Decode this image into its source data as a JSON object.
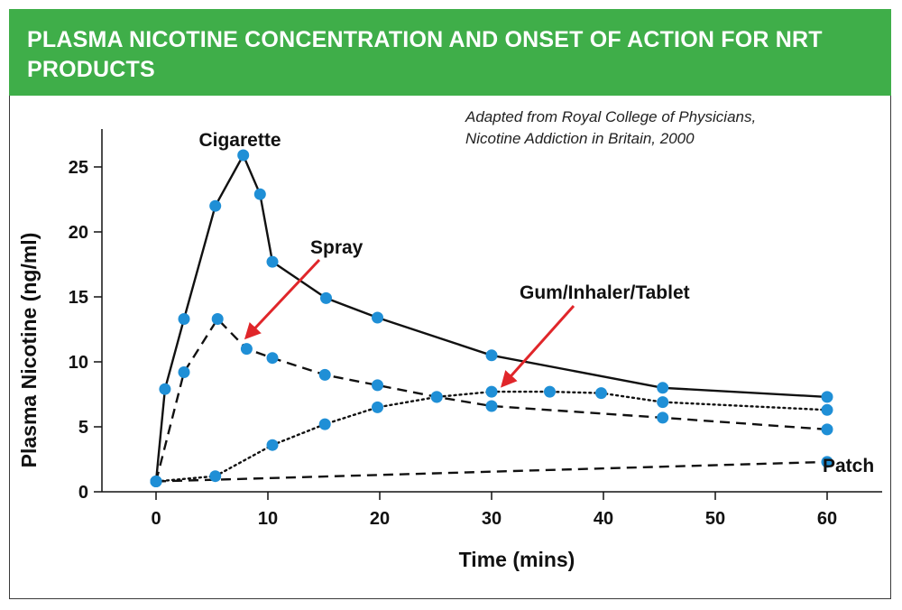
{
  "header": {
    "title": "PLASMA NICOTINE CONCENTRATION AND ONSET OF ACTION FOR NRT PRODUCTS"
  },
  "source": {
    "line1": "Adapted from Royal College of Physicians,",
    "line2": "Nicotine Addiction in Britain, 2000"
  },
  "colors": {
    "banner": "#3fae49",
    "marker": "#1f8fd6",
    "arrow": "#e0262a",
    "line": "#111111"
  },
  "chart_data": {
    "type": "line",
    "xlabel": "Time (mins)",
    "ylabel": "Plasma Nicotine (ng/ml)",
    "xlim": [
      -7,
      65
    ],
    "ylim": [
      0,
      28
    ],
    "xticks": [
      0,
      10,
      20,
      30,
      40,
      50,
      60
    ],
    "yticks": [
      0,
      5,
      10,
      15,
      20,
      25
    ],
    "grid": false,
    "series": [
      {
        "name": "Cigarette",
        "style": "solid",
        "x": [
          0,
          0.8,
          2.5,
          5.3,
          7.8,
          9.3,
          10.4,
          15.2,
          19.8,
          30,
          45.3,
          60
        ],
        "y": [
          0.8,
          7.9,
          13.3,
          22,
          25.9,
          22.9,
          17.7,
          14.9,
          13.4,
          10.5,
          8,
          7.3
        ]
      },
      {
        "name": "Spray",
        "style": "dashed",
        "x": [
          0,
          2.5,
          5.5,
          8.1,
          10.4,
          15.1,
          19.8,
          25.1,
          30,
          45.3,
          60
        ],
        "y": [
          0.8,
          9.2,
          13.3,
          11,
          10.3,
          9,
          8.2,
          7.3,
          6.6,
          5.7,
          4.8
        ]
      },
      {
        "name": "Gum/Inhaler/Tablet",
        "style": "dotted",
        "x": [
          0,
          5.3,
          10.4,
          15.1,
          19.8,
          25.1,
          30,
          35.2,
          39.8,
          45.3,
          60
        ],
        "y": [
          0.8,
          1.2,
          3.6,
          5.2,
          6.5,
          7.3,
          7.7,
          7.7,
          7.6,
          6.9,
          6.3
        ]
      },
      {
        "name": "Patch",
        "style": "dashed",
        "x": [
          0,
          60
        ],
        "y": [
          0.8,
          2.3
        ]
      }
    ],
    "annotations": [
      {
        "text": "Cigarette",
        "series": 0
      },
      {
        "text": "Spray",
        "series": 1,
        "arrow_to": [
          8.1,
          11.9
        ]
      },
      {
        "text": "Gum/Inhaler/Tablet",
        "series": 2,
        "arrow_to": [
          31,
          8.2
        ]
      },
      {
        "text": "Patch",
        "series": 3
      }
    ]
  }
}
